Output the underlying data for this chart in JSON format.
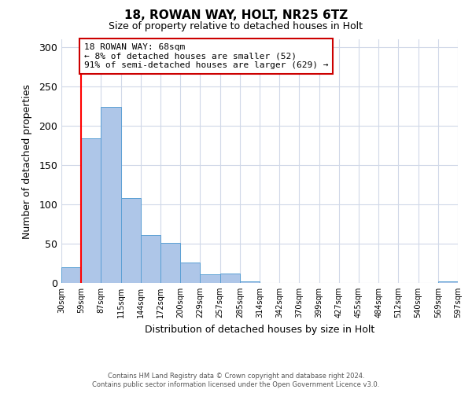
{
  "title": "18, ROWAN WAY, HOLT, NR25 6TZ",
  "subtitle": "Size of property relative to detached houses in Holt",
  "xlabel": "Distribution of detached houses by size in Holt",
  "ylabel": "Number of detached properties",
  "bar_values": [
    20,
    184,
    224,
    108,
    61,
    51,
    26,
    11,
    12,
    2,
    0,
    0,
    0,
    0,
    0,
    0,
    0,
    0,
    0,
    2
  ],
  "bar_labels": [
    "30sqm",
    "59sqm",
    "87sqm",
    "115sqm",
    "144sqm",
    "172sqm",
    "200sqm",
    "229sqm",
    "257sqm",
    "285sqm",
    "314sqm",
    "342sqm",
    "370sqm",
    "399sqm",
    "427sqm",
    "455sqm",
    "484sqm",
    "512sqm",
    "540sqm",
    "569sqm",
    "597sqm"
  ],
  "bar_color": "#aec6e8",
  "bar_edge_color": "#5a9fd4",
  "ylim": [
    0,
    310
  ],
  "yticks": [
    0,
    50,
    100,
    150,
    200,
    250,
    300
  ],
  "red_line_x": 1.0,
  "annotation_title": "18 ROWAN WAY: 68sqm",
  "annotation_line1": "← 8% of detached houses are smaller (52)",
  "annotation_line2": "91% of semi-detached houses are larger (629) →",
  "annotation_box_color": "#ffffff",
  "annotation_box_edge_color": "#cc0000",
  "footer_line1": "Contains HM Land Registry data © Crown copyright and database right 2024.",
  "footer_line2": "Contains public sector information licensed under the Open Government Licence v3.0.",
  "background_color": "#ffffff",
  "grid_color": "#d0d8e8"
}
